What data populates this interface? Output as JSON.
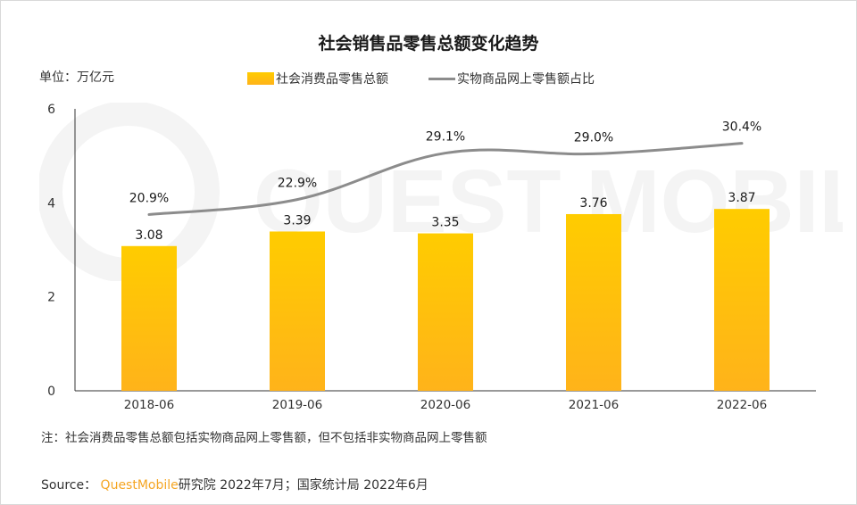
{
  "title": "社会销售品零售总额变化趋势",
  "unit_label": "单位：万亿元",
  "watermark_text": "QUEST MOBILE",
  "chart_data": {
    "type": "bar",
    "categories": [
      "2018-06",
      "2019-06",
      "2020-06",
      "2021-06",
      "2022-06"
    ],
    "series": [
      {
        "name": "社会消费品零售总额",
        "type": "bar",
        "values": [
          3.08,
          3.39,
          3.35,
          3.76,
          3.87
        ],
        "labels": [
          "3.08",
          "3.39",
          "3.35",
          "3.76",
          "3.87"
        ]
      },
      {
        "name": "实物商品网上零售额占比",
        "type": "line",
        "values": [
          20.9,
          22.9,
          29.1,
          29.0,
          30.4
        ],
        "labels": [
          "20.9%",
          "22.9%",
          "29.1%",
          "29.0%",
          "30.4%"
        ]
      }
    ],
    "yticks": [
      "0",
      "2",
      "4",
      "6"
    ],
    "ylim": [
      0,
      6
    ],
    "legend_position": "top",
    "grid": false,
    "colors": {
      "bar_top": "#ffcc00",
      "bar_bottom": "#ffb31a",
      "line": "#8c8c8c"
    }
  },
  "note": "注：社会消费品零售总额包括实物商品网上零售额，但不包括非实物商品网上零售额",
  "source": {
    "prefix": "Source：",
    "brand": "QuestMobile",
    "rest": "研究院 2022年7月；国家统计局 2022年6月"
  }
}
